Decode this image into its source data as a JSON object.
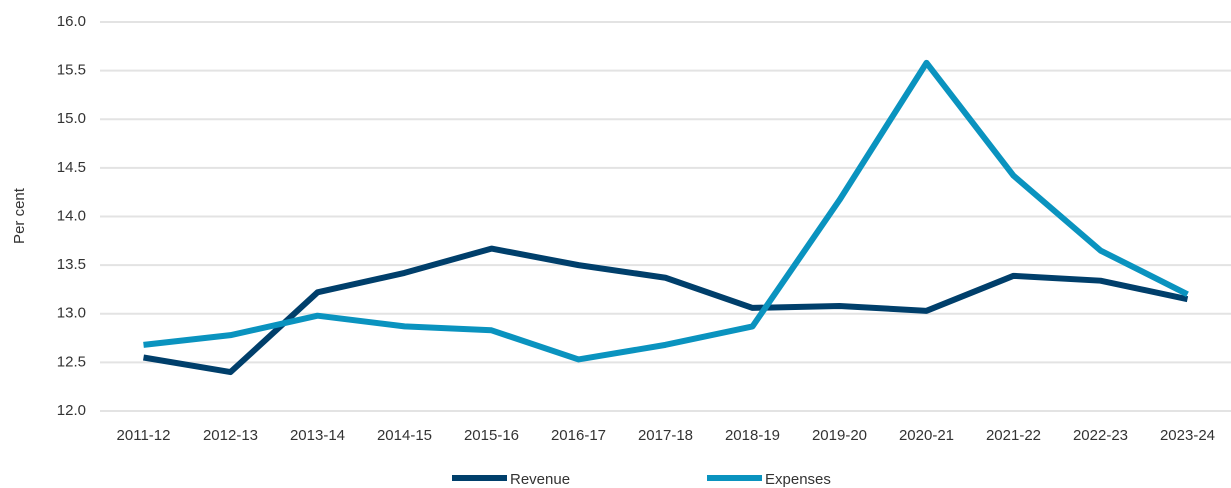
{
  "chart_data": {
    "type": "line",
    "y_label": "Per cent",
    "categories": [
      "2011-12",
      "2012-13",
      "2013-14",
      "2014-15",
      "2015-16",
      "2016-17",
      "2017-18",
      "2018-19",
      "2019-20",
      "2020-21",
      "2021-22",
      "2022-23",
      "2023-24"
    ],
    "series": [
      {
        "name": "Revenue",
        "color": "#003f6b",
        "values": [
          12.55,
          12.4,
          13.22,
          13.42,
          13.67,
          13.5,
          13.37,
          13.06,
          13.08,
          13.03,
          13.39,
          13.34,
          13.15
        ]
      },
      {
        "name": "Expenses",
        "color": "#0a93bf",
        "values": [
          12.68,
          12.78,
          12.98,
          12.87,
          12.83,
          12.53,
          12.68,
          12.87,
          14.17,
          15.58,
          14.42,
          13.65,
          13.2
        ]
      }
    ],
    "ylim": [
      12,
      16
    ],
    "yticks": [
      {
        "value": 12,
        "label": "12.0"
      },
      12.5,
      {
        "value": 13,
        "label": "13.0"
      },
      13.5,
      {
        "value": 14,
        "label": "14.0"
      },
      14.5,
      {
        "value": 15,
        "label": "15.0"
      },
      15.5,
      {
        "value": 16,
        "label": "16.0"
      }
    ],
    "grid": true,
    "legend": "bottom"
  }
}
